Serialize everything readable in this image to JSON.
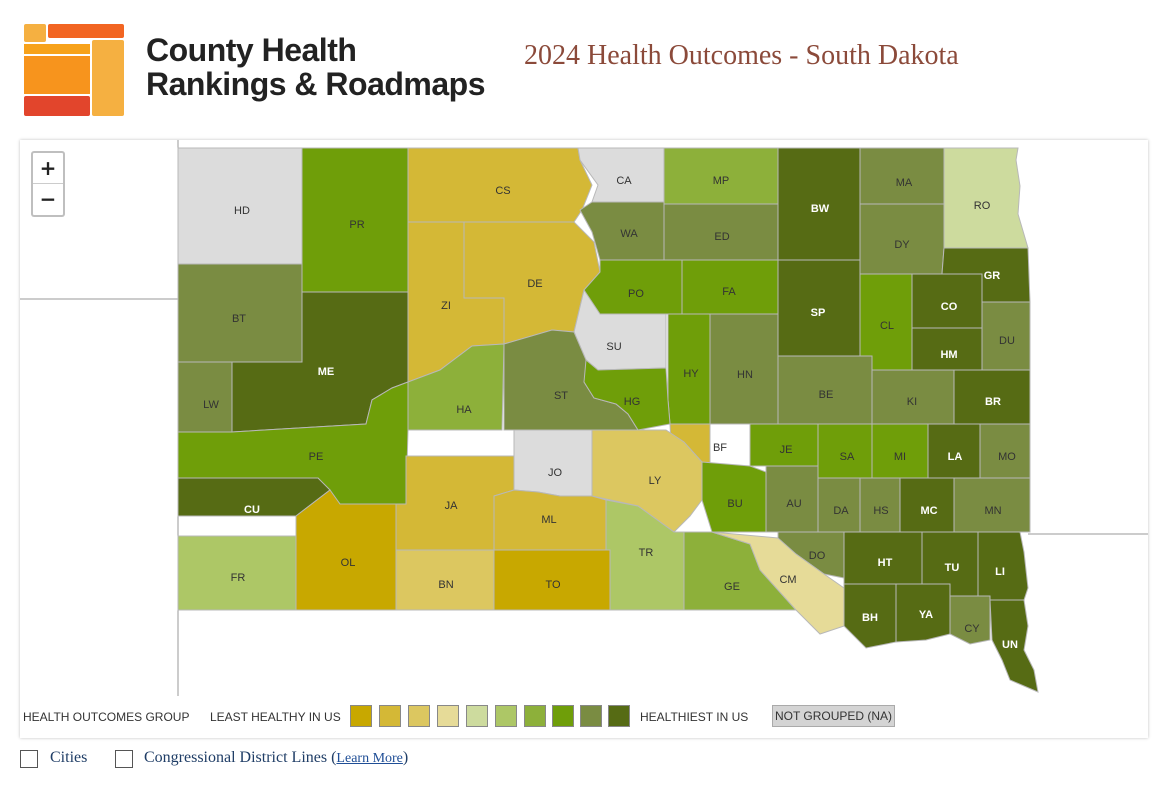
{
  "header": {
    "logo_line1": "County Health",
    "logo_line2": "Rankings & Roadmaps",
    "page_title": "2024 Health Outcomes - South Dakota"
  },
  "zoom": {
    "in_label": "+",
    "out_label": "−"
  },
  "legend": {
    "title": "HEALTH OUTCOMES GROUP",
    "least_label": "LEAST HEALTHY IN US",
    "healthiest_label": "HEALTHIEST IN US",
    "na_label": "NOT GROUPED (NA)",
    "colors": [
      "#c8a800",
      "#d4b836",
      "#dcc760",
      "#e6db98",
      "#cddb9e",
      "#adc766",
      "#8db03a",
      "#6f9e09",
      "#7a8c42",
      "#566b14"
    ],
    "na_color": "#dcdcdc"
  },
  "counties": [
    {
      "abbr": "HD",
      "group": null
    },
    {
      "abbr": "PR",
      "group": 8
    },
    {
      "abbr": "CS",
      "group": 2
    },
    {
      "abbr": "CA",
      "group": null
    },
    {
      "abbr": "MP",
      "group": 7
    },
    {
      "abbr": "BW",
      "group": 10
    },
    {
      "abbr": "MA",
      "group": 9
    },
    {
      "abbr": "RO",
      "group": 5
    },
    {
      "abbr": "WA",
      "group": 9
    },
    {
      "abbr": "ED",
      "group": 9
    },
    {
      "abbr": "DY",
      "group": 9
    },
    {
      "abbr": "GR",
      "group": 10
    },
    {
      "abbr": "BT",
      "group": 9
    },
    {
      "abbr": "ZI",
      "group": 2
    },
    {
      "abbr": "DE",
      "group": 2
    },
    {
      "abbr": "PO",
      "group": 8
    },
    {
      "abbr": "FA",
      "group": 8
    },
    {
      "abbr": "SP",
      "group": 10
    },
    {
      "abbr": "CL",
      "group": 8
    },
    {
      "abbr": "CO",
      "group": 10
    },
    {
      "abbr": "DU",
      "group": 9
    },
    {
      "abbr": "HM",
      "group": 10
    },
    {
      "abbr": "ME",
      "group": 10
    },
    {
      "abbr": "SU",
      "group": null
    },
    {
      "abbr": "HY",
      "group": 8
    },
    {
      "abbr": "HN",
      "group": 9
    },
    {
      "abbr": "LW",
      "group": 9
    },
    {
      "abbr": "HA",
      "group": 7
    },
    {
      "abbr": "ST",
      "group": 9
    },
    {
      "abbr": "HG",
      "group": 8
    },
    {
      "abbr": "BE",
      "group": 9
    },
    {
      "abbr": "KI",
      "group": 9
    },
    {
      "abbr": "BR",
      "group": 10
    },
    {
      "abbr": "PE",
      "group": 8
    },
    {
      "abbr": "BF",
      "group": 2
    },
    {
      "abbr": "JE",
      "group": 8
    },
    {
      "abbr": "SA",
      "group": 8
    },
    {
      "abbr": "MI",
      "group": 8
    },
    {
      "abbr": "LA",
      "group": 10
    },
    {
      "abbr": "MO",
      "group": 9
    },
    {
      "abbr": "JO",
      "group": null
    },
    {
      "abbr": "LY",
      "group": 3
    },
    {
      "abbr": "CU",
      "group": 10
    },
    {
      "abbr": "JA",
      "group": 2
    },
    {
      "abbr": "ML",
      "group": 2
    },
    {
      "abbr": "BU",
      "group": 8
    },
    {
      "abbr": "AU",
      "group": 9
    },
    {
      "abbr": "DA",
      "group": 9
    },
    {
      "abbr": "HS",
      "group": 9
    },
    {
      "abbr": "MC",
      "group": 10
    },
    {
      "abbr": "MN",
      "group": 9
    },
    {
      "abbr": "OL",
      "group": 1
    },
    {
      "abbr": "TR",
      "group": 6
    },
    {
      "abbr": "DO",
      "group": 9
    },
    {
      "abbr": "HT",
      "group": 10
    },
    {
      "abbr": "TU",
      "group": 10
    },
    {
      "abbr": "LI",
      "group": 10
    },
    {
      "abbr": "FR",
      "group": 6
    },
    {
      "abbr": "BN",
      "group": 3
    },
    {
      "abbr": "TO",
      "group": 1
    },
    {
      "abbr": "GE",
      "group": 7
    },
    {
      "abbr": "CM",
      "group": 4
    },
    {
      "abbr": "BH",
      "group": 10
    },
    {
      "abbr": "YA",
      "group": 10
    },
    {
      "abbr": "CY",
      "group": 9
    },
    {
      "abbr": "UN",
      "group": 10
    }
  ],
  "options": {
    "cities_label": "Cities",
    "district_label": "Congressional District Lines (",
    "learn_more": "Learn More",
    "close_paren": ")"
  }
}
